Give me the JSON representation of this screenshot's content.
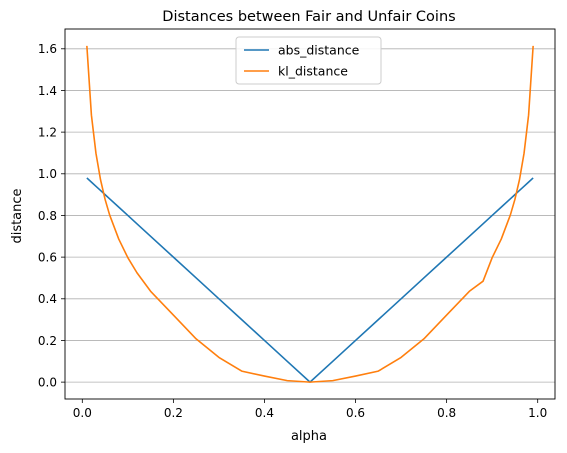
{
  "chart_data": {
    "type": "line",
    "title": "Distances between Fair and Unfair Coins",
    "xlabel": "alpha",
    "ylabel": "distance",
    "xlim": [
      -0.038,
      1.038
    ],
    "ylim": [
      -0.081,
      1.695
    ],
    "xticks": [
      0.0,
      0.2,
      0.4,
      0.6,
      0.8,
      1.0
    ],
    "xtick_labels": [
      "0.0",
      "0.2",
      "0.4",
      "0.6",
      "0.8",
      "1.0"
    ],
    "yticks": [
      0.0,
      0.2,
      0.4,
      0.6,
      0.8,
      1.0,
      1.2,
      1.4,
      1.6
    ],
    "ytick_labels": [
      "0.0",
      "0.2",
      "0.4",
      "0.6",
      "0.8",
      "1.0",
      "1.2",
      "1.4",
      "1.6"
    ],
    "grid": "horizontal",
    "legend_position": "upper center",
    "x": [
      0.01,
      0.02,
      0.03,
      0.04,
      0.05,
      0.06,
      0.08,
      0.1,
      0.12,
      0.15,
      0.2,
      0.25,
      0.3,
      0.35,
      0.4,
      0.45,
      0.5,
      0.55,
      0.6,
      0.65,
      0.7,
      0.75,
      0.8,
      0.85,
      0.88,
      0.9,
      0.92,
      0.94,
      0.95,
      0.96,
      0.97,
      0.98,
      0.99
    ],
    "series": [
      {
        "name": "abs_distance",
        "color": "#1f77b4",
        "values": [
          0.98,
          0.96,
          0.94,
          0.92,
          0.9,
          0.88,
          0.84,
          0.8,
          0.76,
          0.7,
          0.6,
          0.5,
          0.4,
          0.3,
          0.2,
          0.1,
          0.0,
          0.1,
          0.2,
          0.3,
          0.4,
          0.5,
          0.6,
          0.7,
          0.76,
          0.8,
          0.84,
          0.88,
          0.9,
          0.92,
          0.94,
          0.96,
          0.98
        ]
      },
      {
        "name": "kl_distance",
        "color": "#ff7f0e",
        "values": [
          1.614,
          1.2818,
          1.0979,
          0.9716,
          0.8774,
          0.8025,
          0.6868,
          0.5973,
          0.5249,
          0.4361,
          0.3219,
          0.2075,
          0.1187,
          0.0529,
          0.029,
          0.0072,
          0.0,
          0.0072,
          0.029,
          0.0529,
          0.1187,
          0.2075,
          0.3219,
          0.4361,
          0.4845,
          0.5973,
          0.6868,
          0.8025,
          0.8774,
          0.9716,
          1.0979,
          1.2818,
          1.614
        ]
      }
    ]
  }
}
